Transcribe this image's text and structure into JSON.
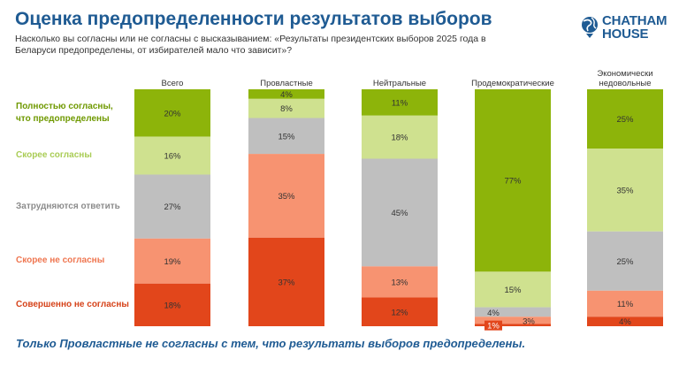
{
  "header": {
    "title": "Оценка предопределенности результатов выборов",
    "subtitle": "Насколько вы согласны или не согласны с высказыванием: «Результаты президентских выборов 2025 года в Беларуси предопределены, от избирателей мало что зависит»?"
  },
  "logo": {
    "line1": "CHATHAM",
    "line2": "HOUSE",
    "icon": "chatham-house-globe-icon",
    "color": "#1f5b93"
  },
  "footer": {
    "text": "Только Провластные не согласны с тем, что результаты выборов предопределены."
  },
  "chart_data": {
    "type": "bar",
    "stacked": true,
    "stack_order": "top-to-bottom",
    "categories": [
      "Всего",
      "Провластные",
      "Нейтральные",
      "Продемократические",
      "Экономически недовольные"
    ],
    "series": [
      {
        "name": "Полностью согласны, что предопределены",
        "color": "#8db40a",
        "label_color": "#6f9900",
        "values": [
          20,
          4,
          11,
          77,
          25
        ]
      },
      {
        "name": "Скорее согласны",
        "color": "#cfe18f",
        "label_color": "#a9cc55",
        "values": [
          16,
          8,
          18,
          15,
          35
        ]
      },
      {
        "name": "Затрудняются ответить",
        "color": "#bfbfbf",
        "label_color": "#8c8c8c",
        "values": [
          27,
          15,
          45,
          4,
          25
        ]
      },
      {
        "name": "Скорее не согласны",
        "color": "#f79371",
        "label_color": "#ef7650",
        "values": [
          19,
          35,
          13,
          3,
          11
        ]
      },
      {
        "name": "Совершенно не согласны",
        "color": "#e2461b",
        "label_color": "#d6431a",
        "values": [
          18,
          37,
          12,
          1,
          4
        ]
      }
    ],
    "unit": "%",
    "ylim": [
      0,
      100
    ],
    "grid": false,
    "legend": "left"
  }
}
